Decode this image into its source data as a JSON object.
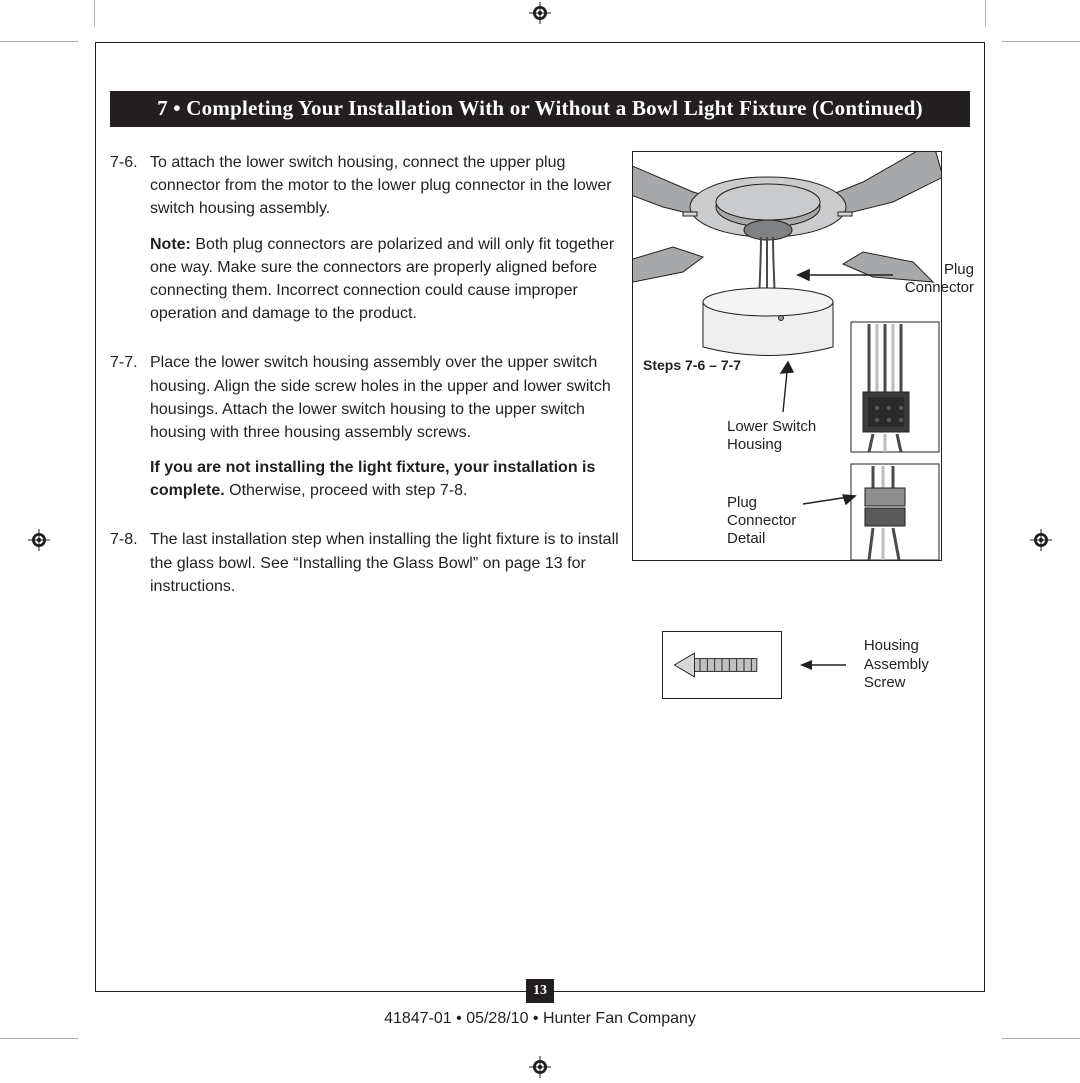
{
  "header": {
    "title": "7 • Completing Your Installation With or Without a Bowl Light Fixture (Continued)"
  },
  "steps": [
    {
      "num": "7-6.",
      "paragraphs": [
        {
          "text": "To attach the lower switch housing, connect the upper plug connector from the motor to the lower plug connector in the lower switch housing assembly."
        },
        {
          "note": true,
          "label": "Note:",
          "text": " Both plug connectors are polarized and will only fit together one way. Make sure the connectors are properly aligned before connecting them. Incorrect connection could cause improper operation and damage to the product."
        }
      ]
    },
    {
      "num": "7-7.",
      "paragraphs": [
        {
          "text": "Place the lower switch housing assembly over the upper switch housing. Align the side screw holes in the upper and lower switch housings. Attach the lower switch housing to the upper switch housing with three housing assembly screws."
        },
        {
          "boldLead": "If you are not installing the light fixture, your installation is complete.",
          "tail": " Otherwise, proceed with step 7-8."
        }
      ]
    },
    {
      "num": "7-8.",
      "paragraphs": [
        {
          "text": "The last installation step when installing the light fixture is to install the glass bowl. See “Installing the Glass Bowl” on page 13 for instructions."
        }
      ]
    }
  ],
  "figure": {
    "stepsCaption": "Steps 7-6 – 7-7",
    "callouts": {
      "plugConnector": "Plug Connector",
      "lowerSwitchHousing": "Lower Switch Housing",
      "plugConnectorDetail": "Plug Connector Detail"
    },
    "screwLabel": "Housing Assembly Screw",
    "colors": {
      "stroke": "#231f20",
      "metalLight": "#c9cbcc",
      "metalMid": "#a6a8aa",
      "metalDark": "#7f8183",
      "wireDark": "#4a4a4a",
      "insetBg": "#ffffff"
    }
  },
  "pageNumber": "13",
  "footer": "41847-01  •  05/28/10  •  Hunter Fan Company"
}
